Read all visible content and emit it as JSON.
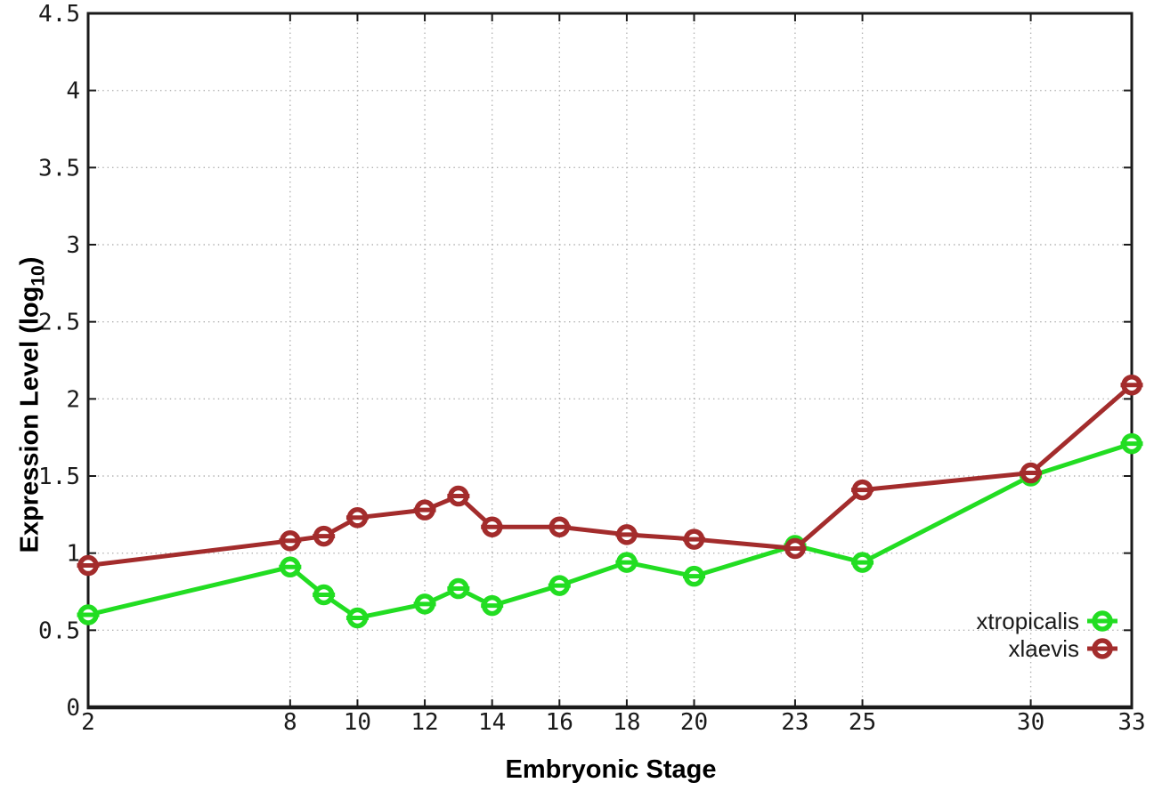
{
  "chart_data": {
    "type": "line",
    "title": "",
    "xlabel": "Embryonic Stage",
    "ylabel_prefix": "Expression Level (log",
    "ylabel_sub": "10",
    "ylabel_suffix": ")",
    "x": [
      2,
      8,
      9,
      10,
      12,
      13,
      14,
      16,
      18,
      20,
      23,
      25,
      30,
      33
    ],
    "xtick_labels": [
      2,
      8,
      10,
      12,
      14,
      16,
      18,
      20,
      23,
      25,
      30,
      33
    ],
    "ytick_labels": [
      "0",
      "0.5",
      "1",
      "1.5",
      "2",
      "2.5",
      "3",
      "3.5",
      "4",
      "4.5"
    ],
    "xlim": [
      2,
      33
    ],
    "ylim": [
      0,
      4.5
    ],
    "grid": true,
    "legend_position": "bottom-right",
    "series": [
      {
        "name": "xtropicalis",
        "color": "#22dd22",
        "values": [
          0.6,
          0.91,
          0.73,
          0.58,
          0.67,
          0.77,
          0.66,
          0.79,
          0.94,
          0.85,
          1.05,
          0.94,
          1.5,
          1.71
        ]
      },
      {
        "name": "xlaevis",
        "color": "#a32c2c",
        "values": [
          0.92,
          1.08,
          1.11,
          1.23,
          1.28,
          1.37,
          1.17,
          1.17,
          1.12,
          1.09,
          1.03,
          1.41,
          1.52,
          2.09
        ]
      }
    ],
    "colors": {
      "axis": "#1a1a1a",
      "grid": "#b0b0b0",
      "text": "#1a1a1a"
    }
  }
}
